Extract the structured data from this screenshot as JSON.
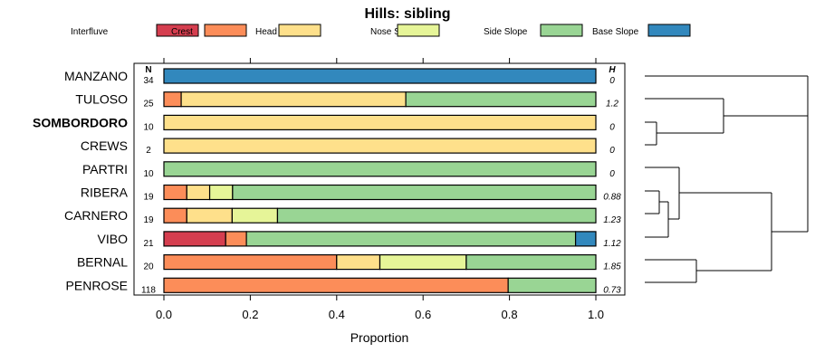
{
  "chart_data": {
    "type": "stacked-bar",
    "title": "Hills: sibling",
    "xlabel": "Proportion",
    "xlim": [
      0,
      1
    ],
    "xticks": [
      "0.0",
      "0.2",
      "0.4",
      "0.6",
      "0.8",
      "1.0"
    ],
    "n_header": "N",
    "h_header": "H",
    "legend": [
      {
        "name": "Interfluve",
        "color": "#d53e4f"
      },
      {
        "name": "Crest",
        "color": "#fc8d59"
      },
      {
        "name": "Head Slope",
        "color": "#fee08b"
      },
      {
        "name": "Nose Slope",
        "color": "#e6f598"
      },
      {
        "name": "Side Slope",
        "color": "#99d594"
      },
      {
        "name": "Base Slope",
        "color": "#3288bd"
      }
    ],
    "rows": [
      {
        "label": "MANZANO",
        "n": "34",
        "h": "0",
        "bold": false,
        "values": [
          0,
          0,
          0,
          0,
          0,
          1.0
        ]
      },
      {
        "label": "TULOSO",
        "n": "25",
        "h": "1.2",
        "bold": false,
        "values": [
          0,
          0.04,
          0.52,
          0,
          0.44,
          0
        ]
      },
      {
        "label": "SOMBORDORO",
        "n": "10",
        "h": "0",
        "bold": true,
        "values": [
          0,
          0,
          1.0,
          0,
          0,
          0
        ]
      },
      {
        "label": "CREWS",
        "n": "2",
        "h": "0",
        "bold": false,
        "values": [
          0,
          0,
          1.0,
          0,
          0,
          0
        ]
      },
      {
        "label": "PARTRI",
        "n": "10",
        "h": "0",
        "bold": false,
        "values": [
          0,
          0,
          0,
          0,
          1.0,
          0
        ]
      },
      {
        "label": "RIBERA",
        "n": "19",
        "h": "0.88",
        "bold": false,
        "values": [
          0,
          0.053,
          0.053,
          0.053,
          0.841,
          0
        ]
      },
      {
        "label": "CARNERO",
        "n": "19",
        "h": "1.23",
        "bold": false,
        "values": [
          0,
          0.053,
          0.105,
          0.105,
          0.737,
          0
        ]
      },
      {
        "label": "VIBO",
        "n": "21",
        "h": "1.12",
        "bold": false,
        "values": [
          0.143,
          0.048,
          0,
          0,
          0.762,
          0.047
        ]
      },
      {
        "label": "BERNAL",
        "n": "20",
        "h": "1.85",
        "bold": false,
        "values": [
          0,
          0.4,
          0.1,
          0.2,
          0.3,
          0
        ]
      },
      {
        "label": "PENROSE",
        "n": "118",
        "h": "0.73",
        "bold": false,
        "values": [
          0,
          0.797,
          0,
          0,
          0.203,
          0
        ]
      }
    ]
  }
}
